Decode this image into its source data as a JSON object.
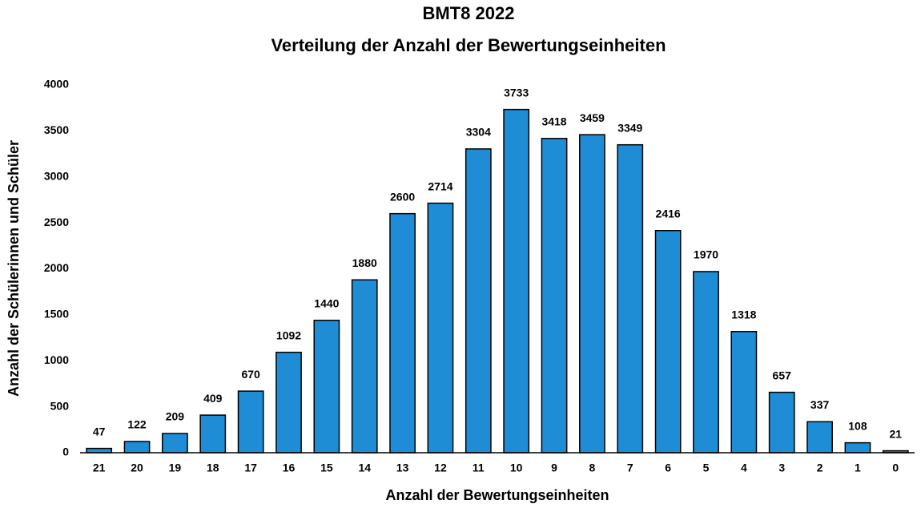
{
  "chart_data": {
    "type": "bar",
    "title": "BMT8 2022",
    "subtitle": "Verteilung der Anzahl der Bewertungseinheiten",
    "x_label": "Anzahl der Bewertungseinheiten",
    "y_label": "Anzahl der Schülerinnen und Schüler",
    "categories": [
      "21",
      "20",
      "19",
      "18",
      "17",
      "16",
      "15",
      "14",
      "13",
      "12",
      "11",
      "10",
      "9",
      "8",
      "7",
      "6",
      "5",
      "4",
      "3",
      "2",
      "1",
      "0"
    ],
    "values": [
      47,
      122,
      209,
      409,
      670,
      1092,
      1440,
      1880,
      2600,
      2714,
      3304,
      3733,
      3418,
      3459,
      3349,
      2416,
      1970,
      1318,
      657,
      337,
      108,
      21
    ],
    "color": "#1f8dd6",
    "ylim": [
      0,
      4000
    ],
    "yticks": [
      0,
      500,
      1000,
      1500,
      2000,
      2500,
      3000,
      3500,
      4000
    ],
    "grid": false
  }
}
